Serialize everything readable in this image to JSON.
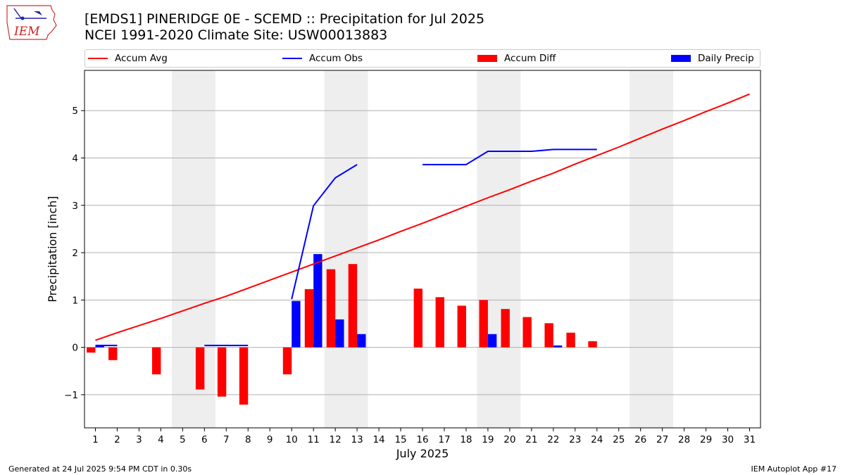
{
  "title_line1": "[EMDS1] PINERIDGE 0E - SCEMD :: Precipitation for Jul 2025",
  "title_line2": "NCEI 1991-2020 Climate Site: USW00013883",
  "logo_text": "IEM",
  "footer_left": "Generated at 24 Jul 2025 9:54 PM CDT in 0.30s",
  "footer_right": "IEM Autoplot App #17",
  "colors": {
    "accum_avg": "#ff0000",
    "accum_obs": "#0000ff",
    "accum_diff": "#ff0000",
    "daily_precip": "#0000ff",
    "weekend_shade": "#eeeeee",
    "grid": "#b0b0b0"
  },
  "chart_data": {
    "type": "bar",
    "xlabel": "July 2025",
    "ylabel": "Precipitation [inch]",
    "xlim": [
      0.5,
      31.5
    ],
    "ylim": [
      -1.7,
      5.85
    ],
    "yticks": [
      -1,
      0,
      1,
      2,
      3,
      4,
      5
    ],
    "ytick_labels": [
      "−1",
      "0",
      "1",
      "2",
      "3",
      "4",
      "5"
    ],
    "days": [
      1,
      2,
      3,
      4,
      5,
      6,
      7,
      8,
      9,
      10,
      11,
      12,
      13,
      14,
      15,
      16,
      17,
      18,
      19,
      20,
      21,
      22,
      23,
      24,
      25,
      26,
      27,
      28,
      29,
      30,
      31
    ],
    "grid": "y",
    "legend_position": "top",
    "weekend_days": [
      5,
      6,
      12,
      13,
      19,
      20,
      26,
      27
    ],
    "series": [
      {
        "name": "Accum Avg",
        "kind": "line",
        "x": [
          1,
          2,
          3,
          4,
          5,
          6,
          7,
          8,
          9,
          10,
          11,
          12,
          13,
          14,
          15,
          16,
          17,
          18,
          19,
          20,
          21,
          22,
          23,
          24,
          25,
          26,
          27,
          28,
          29,
          30,
          31
        ],
        "values": [
          0.15,
          0.31,
          0.46,
          0.61,
          0.77,
          0.93,
          1.08,
          1.25,
          1.42,
          1.59,
          1.76,
          1.93,
          2.1,
          2.27,
          2.45,
          2.62,
          2.8,
          2.98,
          3.16,
          3.33,
          3.51,
          3.68,
          3.87,
          4.05,
          4.23,
          4.42,
          4.61,
          4.79,
          4.98,
          5.16,
          5.35
        ]
      },
      {
        "name": "Accum Obs",
        "kind": "line",
        "segments": [
          {
            "x": [
              1,
              2
            ],
            "values": [
              0.04,
              0.04
            ]
          },
          {
            "x": [
              6,
              7,
              8
            ],
            "values": [
              0.04,
              0.04,
              0.04
            ]
          },
          {
            "x": [
              10,
              11,
              12,
              13
            ],
            "values": [
              1.02,
              2.99,
              3.58,
              3.86
            ]
          },
          {
            "x": [
              16,
              17,
              18,
              19,
              20,
              21,
              22,
              23,
              24
            ],
            "values": [
              3.86,
              3.86,
              3.86,
              4.14,
              4.14,
              4.14,
              4.18,
              4.18,
              4.18
            ]
          }
        ]
      },
      {
        "name": "Accum Diff",
        "kind": "bar",
        "x": [
          1,
          2,
          4,
          6,
          7,
          8,
          10,
          11,
          12,
          13,
          16,
          17,
          18,
          19,
          20,
          21,
          22,
          23,
          24
        ],
        "values": [
          -0.11,
          -0.27,
          -0.57,
          -0.89,
          -1.04,
          -1.21,
          -0.57,
          1.23,
          1.65,
          1.76,
          1.24,
          1.06,
          0.88,
          1.0,
          0.81,
          0.64,
          0.51,
          0.31,
          0.13
        ]
      },
      {
        "name": "Daily Precip",
        "kind": "bar",
        "x": [
          1,
          10,
          11,
          12,
          13,
          19,
          22
        ],
        "values": [
          0.04,
          0.98,
          1.97,
          0.59,
          0.28,
          0.28,
          0.04
        ]
      }
    ]
  }
}
